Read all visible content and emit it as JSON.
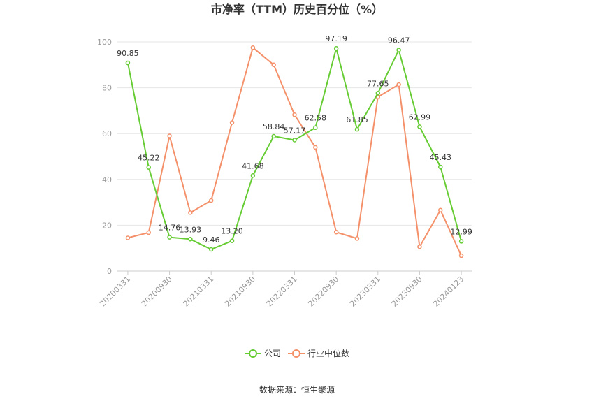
{
  "chart_data": {
    "type": "line",
    "title": "市净率（TTM）历史百分位（%）",
    "xlabel": "",
    "ylabel": "",
    "ylim": [
      0,
      100
    ],
    "yticks": [
      0,
      20,
      40,
      60,
      80,
      100
    ],
    "x": [
      "20200331",
      "20200630",
      "20200930",
      "20201231",
      "20210331",
      "20210630",
      "20210930",
      "20211231",
      "20220331",
      "20220630",
      "20220930",
      "20221231",
      "20230331",
      "20230630",
      "20230930",
      "20231231",
      "20240123"
    ],
    "xtick_labels": [
      "20200331",
      "20200930",
      "20210331",
      "20210930",
      "20220331",
      "20220930",
      "20230331",
      "20230930",
      "20240123"
    ],
    "grid": true,
    "legend_position": "bottom",
    "series": [
      {
        "name": "公司",
        "color": "#66cc33",
        "show_labels": true,
        "values": [
          90.85,
          45.22,
          14.76,
          13.93,
          9.46,
          13.2,
          41.68,
          58.84,
          57.17,
          62.58,
          97.19,
          61.85,
          77.65,
          96.47,
          62.99,
          45.43,
          12.99
        ]
      },
      {
        "name": "行业中位数",
        "color": "#f4906a",
        "show_labels": false,
        "values": [
          14.5,
          16.8,
          59.0,
          25.5,
          30.8,
          64.8,
          97.5,
          90.0,
          68.2,
          54.0,
          17.0,
          14.2,
          76.0,
          81.4,
          10.6,
          26.6,
          6.7
        ]
      }
    ],
    "source": "数据来源：恒生聚源"
  }
}
